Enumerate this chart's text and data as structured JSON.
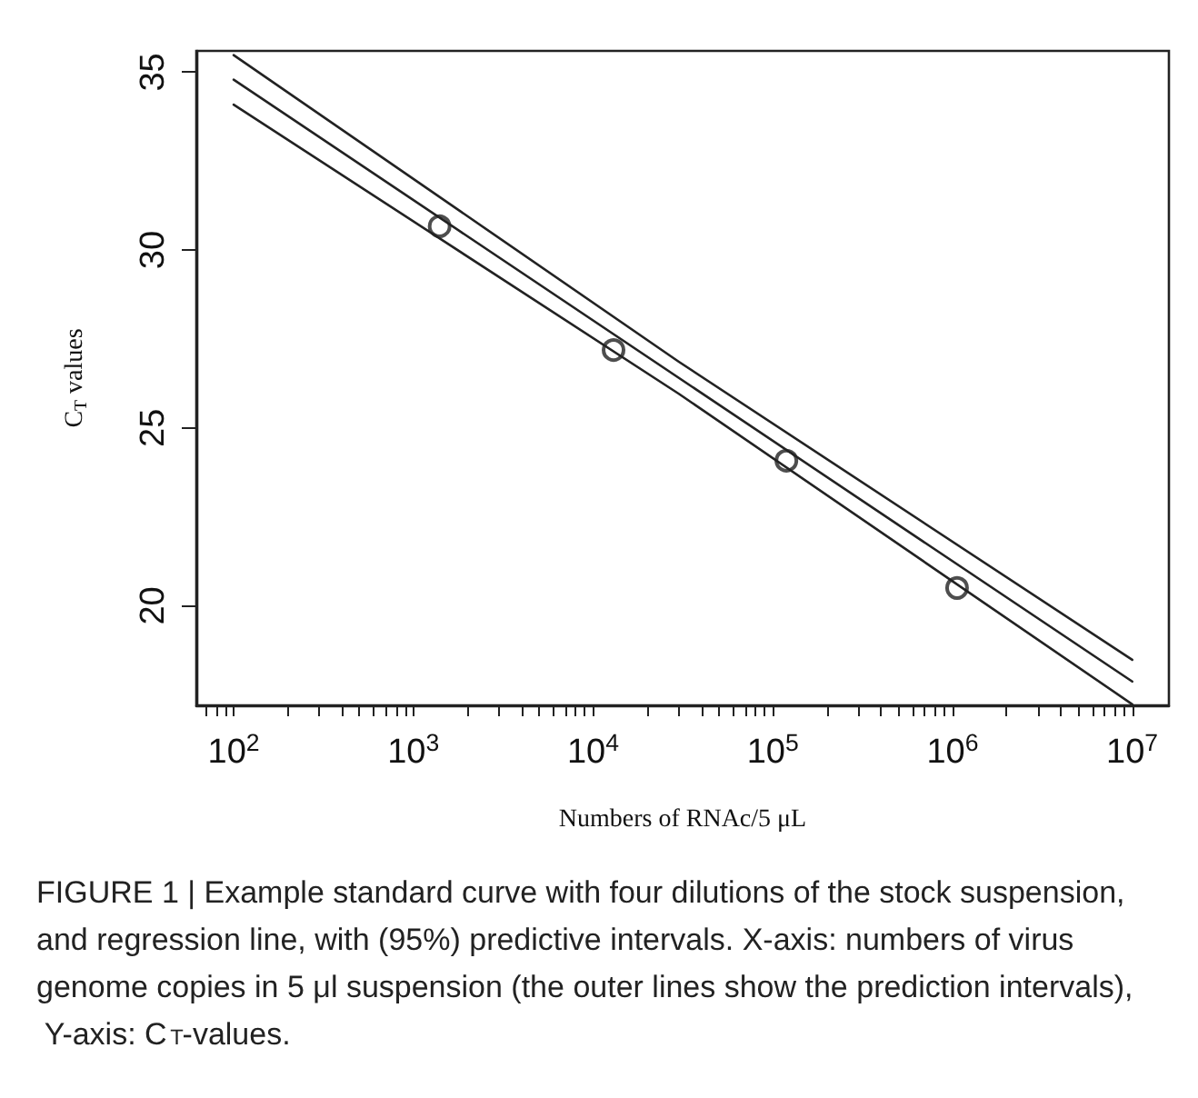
{
  "chart_data": {
    "type": "line",
    "xlabel": "Numbers of RNAc/5 μL",
    "ylabel": "C$_{T}$ values",
    "log": "x",
    "xlim": [
      62,
      16000000
    ],
    "ylim": [
      17.2,
      35.6
    ],
    "xticks": [
      {
        "value": 70,
        "label": null
      },
      {
        "value": 80,
        "label": null
      },
      {
        "value": 90,
        "label": null
      },
      {
        "value": 100,
        "label": "10$^{2}$"
      },
      {
        "value": 200,
        "label": null
      },
      {
        "value": 300,
        "label": null
      },
      {
        "value": 400,
        "label": null
      },
      {
        "value": 500,
        "label": null
      },
      {
        "value": 600,
        "label": null
      },
      {
        "value": 700,
        "label": null
      },
      {
        "value": 800,
        "label": null
      },
      {
        "value": 900,
        "label": null
      },
      {
        "value": 1000,
        "label": "10$^{3}$"
      },
      {
        "value": 2000,
        "label": null
      },
      {
        "value": 3000,
        "label": null
      },
      {
        "value": 4000,
        "label": null
      },
      {
        "value": 5000,
        "label": null
      },
      {
        "value": 6000,
        "label": null
      },
      {
        "value": 7000,
        "label": null
      },
      {
        "value": 8000,
        "label": null
      },
      {
        "value": 9000,
        "label": null
      },
      {
        "value": 10000,
        "label": "10$^{4}$"
      },
      {
        "value": 20000,
        "label": null
      },
      {
        "value": 30000,
        "label": null
      },
      {
        "value": 40000,
        "label": null
      },
      {
        "value": 50000,
        "label": null
      },
      {
        "value": 60000,
        "label": null
      },
      {
        "value": 70000,
        "label": null
      },
      {
        "value": 80000,
        "label": null
      },
      {
        "value": 90000,
        "label": null
      },
      {
        "value": 100000,
        "label": "10$^{5}$"
      },
      {
        "value": 200000,
        "label": null
      },
      {
        "value": 300000,
        "label": null
      },
      {
        "value": 400000,
        "label": null
      },
      {
        "value": 500000,
        "label": null
      },
      {
        "value": 600000,
        "label": null
      },
      {
        "value": 700000,
        "label": null
      },
      {
        "value": 800000,
        "label": null
      },
      {
        "value": 900000,
        "label": null
      },
      {
        "value": 1000000,
        "label": "10$^{6}$"
      },
      {
        "value": 2000000,
        "label": null
      },
      {
        "value": 3000000,
        "label": null
      },
      {
        "value": 4000000,
        "label": null
      },
      {
        "value": 5000000,
        "label": null
      },
      {
        "value": 6000000,
        "label": null
      },
      {
        "value": 7000000,
        "label": null
      },
      {
        "value": 8000000,
        "label": null
      },
      {
        "value": 9000000,
        "label": null
      },
      {
        "value": 10000000,
        "label": "10$^{7}$"
      }
    ],
    "yticks": [
      20,
      25,
      30,
      35
    ],
    "grid": false,
    "series": [
      {
        "type": "line",
        "x": [
          100,
          30000,
          10000000
        ],
        "values": [
          35.48,
          26.86,
          18.48
        ],
        "color": "#222222"
      },
      {
        "type": "line",
        "x": [
          100,
          10000000
        ],
        "values": [
          34.79,
          17.87
        ],
        "color": "#222222"
      },
      {
        "type": "line",
        "x": [
          100,
          30000,
          10000000
        ],
        "values": [
          34.09,
          25.96,
          17.23
        ],
        "color": "#222222"
      },
      {
        "type": "scatter",
        "x": [
          1400,
          13000,
          119000,
          1060000
        ],
        "values": [
          30.67,
          27.19,
          24.08,
          20.5
        ],
        "color": "#222222",
        "marker": "circle"
      }
    ],
    "annotations": [
      "FIGURE 1 | Example standard curve with four dilutions of the stock suspension, and regression line, with (95%) predictive intervals. X-axis: numbers of virus genome copies in 5 μl suspension (the outer lines show the prediction intervals), Y-axis: C$_{T}$-values."
    ]
  }
}
